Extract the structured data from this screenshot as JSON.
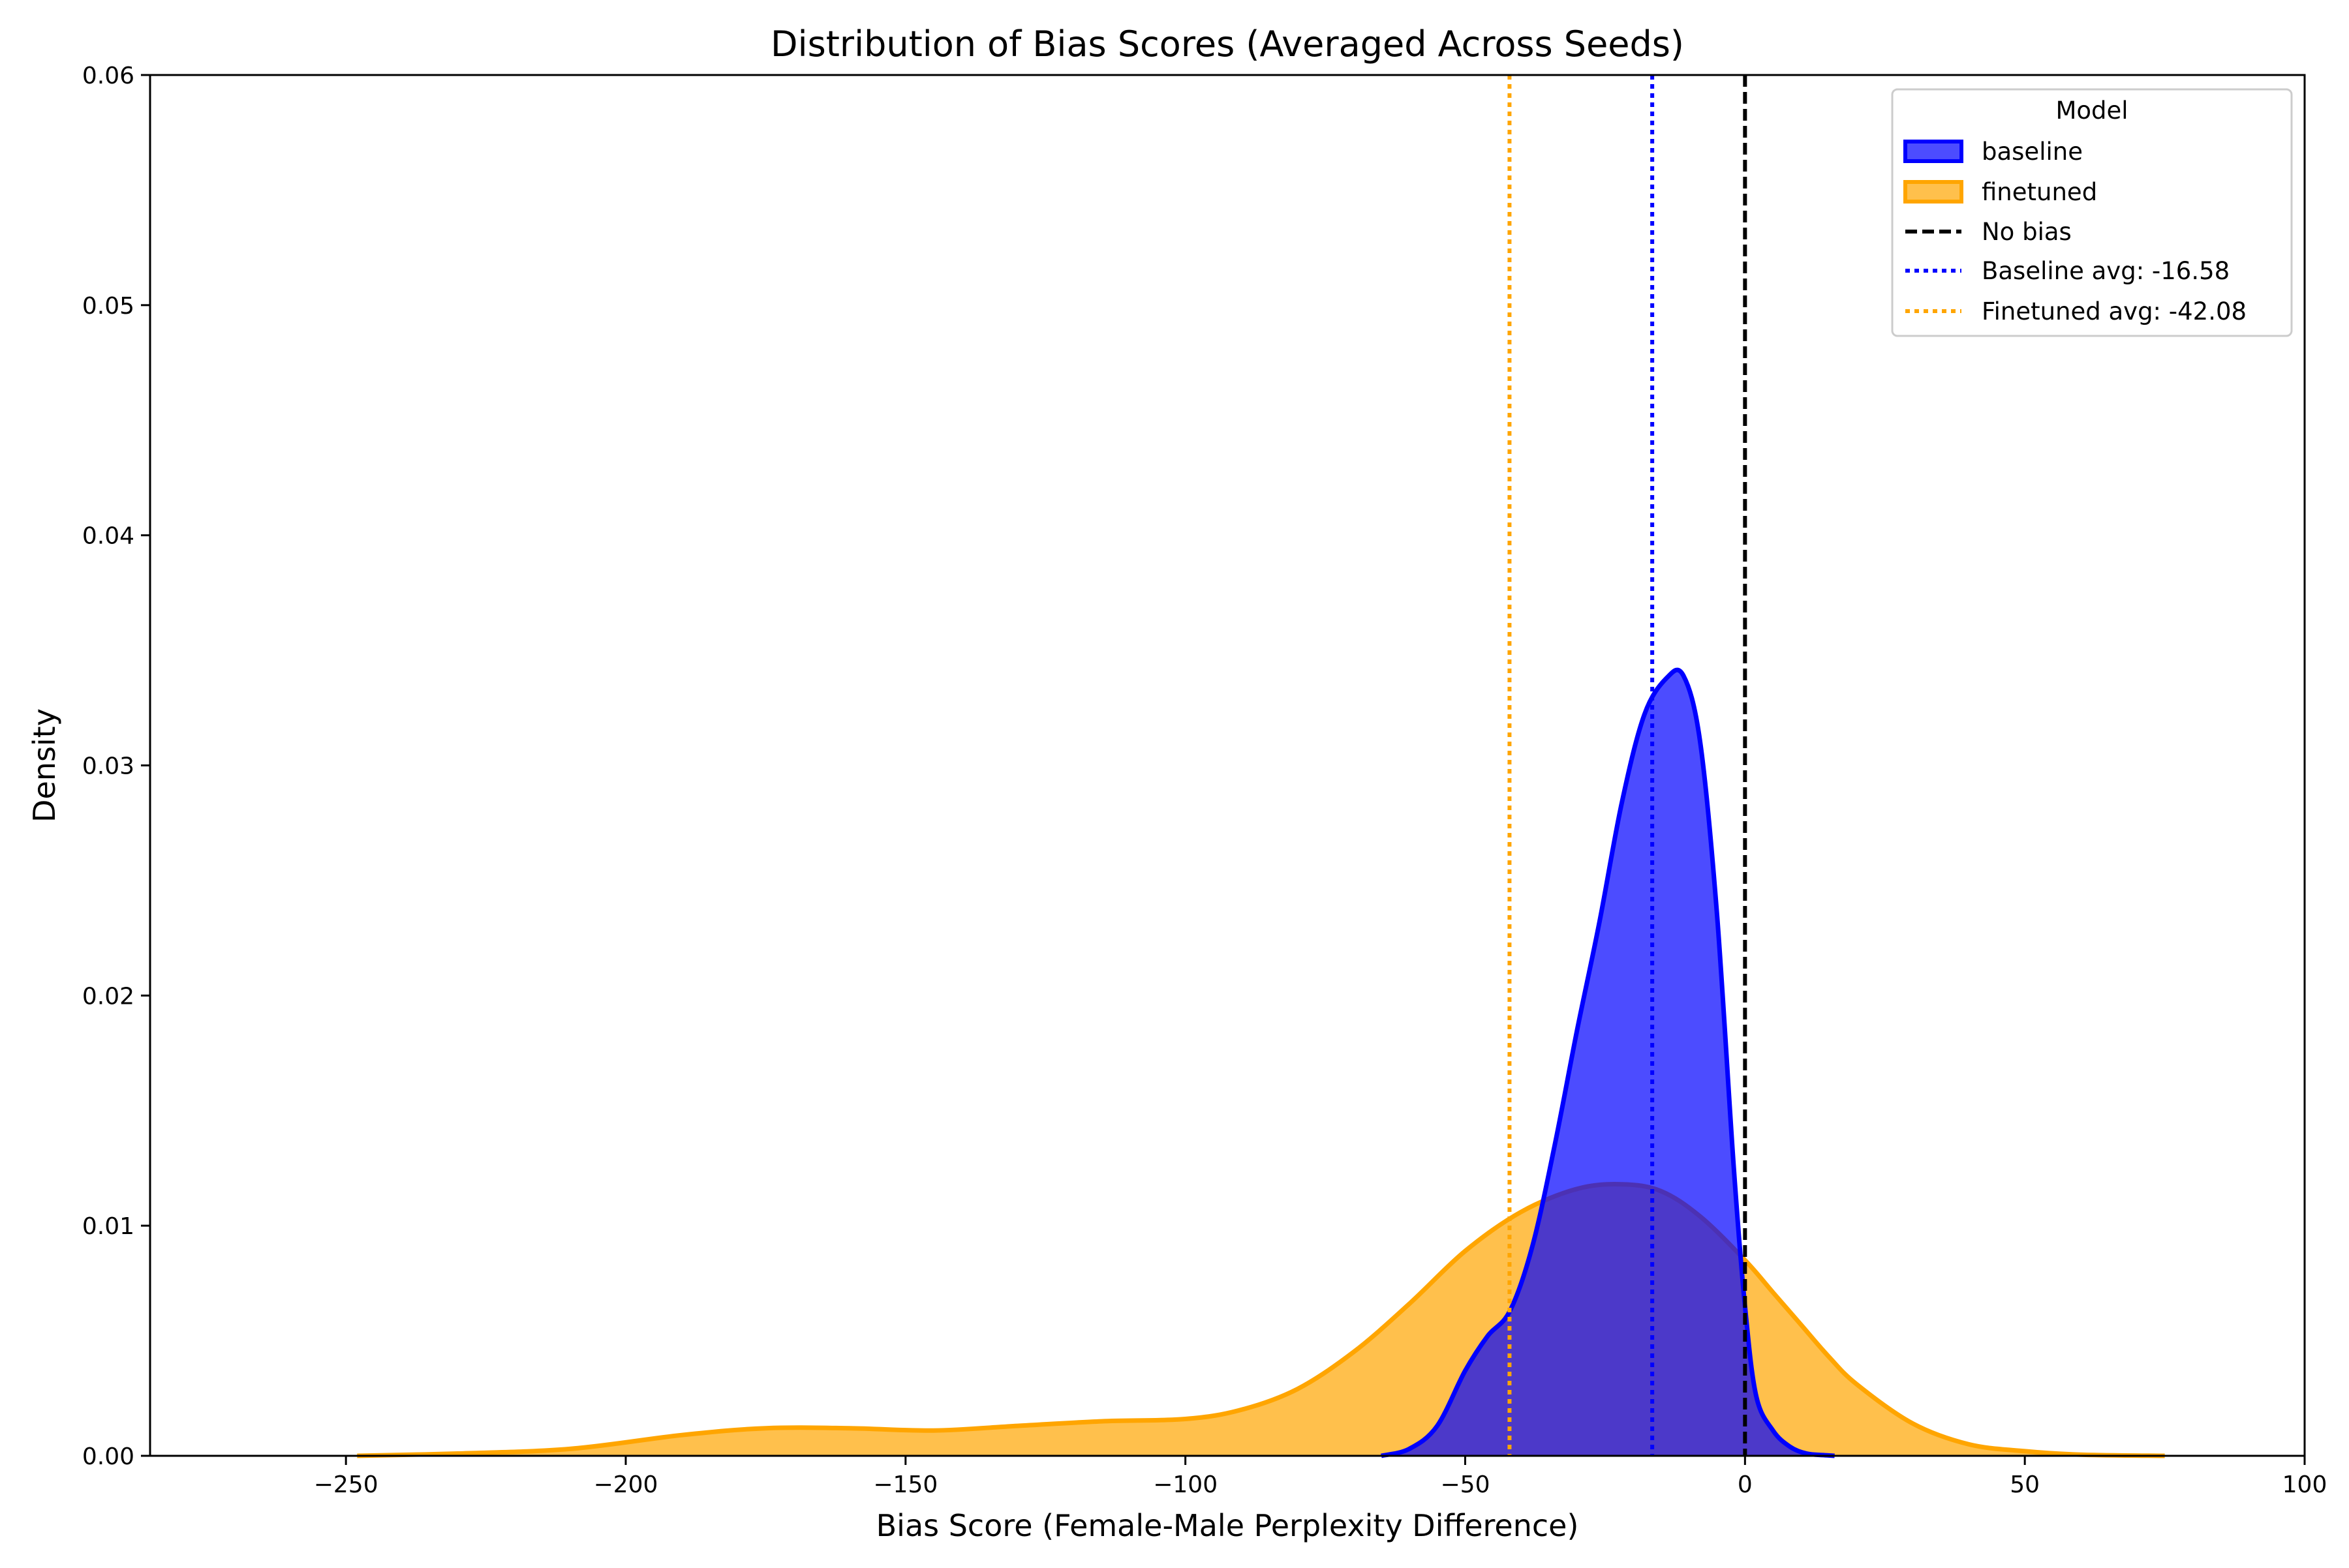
{
  "chart_data": {
    "type": "area",
    "title": "Distribution of Bias Scores (Averaged Across Seeds)",
    "xlabel": "Bias Score (Female-Male Perplexity Difference)",
    "ylabel": "Density",
    "xlim": [
      -285,
      100
    ],
    "ylim": [
      0,
      0.06
    ],
    "x_ticks": [
      -250,
      -200,
      -150,
      -100,
      -50,
      0,
      50,
      100
    ],
    "x_tick_labels": [
      "−250",
      "−200",
      "−150",
      "−100",
      "−50",
      "0",
      "50",
      "100"
    ],
    "y_ticks": [
      0,
      0.01,
      0.02,
      0.03,
      0.04,
      0.05,
      0.06
    ],
    "y_tick_labels": [
      "0.00",
      "0.01",
      "0.02",
      "0.03",
      "0.04",
      "0.05",
      "0.06"
    ],
    "grid": false,
    "legend": {
      "title": "Model",
      "placement": "top-right"
    },
    "series": [
      {
        "name": "baseline",
        "color": "#0000ff",
        "fill_opacity": 0.7,
        "x": [
          -65,
          -60,
          -55,
          -50,
          -46,
          -42,
          -38,
          -34,
          -30,
          -26,
          -22,
          -18,
          -14,
          -11,
          -8,
          -5,
          -2,
          0,
          2,
          5,
          8,
          11,
          14,
          16
        ],
        "y": [
          0.0,
          0.0003,
          0.0013,
          0.0037,
          0.0052,
          0.0063,
          0.0091,
          0.0135,
          0.0185,
          0.0232,
          0.0284,
          0.0322,
          0.0338,
          0.0339,
          0.031,
          0.0235,
          0.0125,
          0.0065,
          0.0026,
          0.0011,
          0.0004,
          0.0001,
          3e-05,
          0.0
        ]
      },
      {
        "name": "finetuned",
        "color": "#ffa500",
        "fill_opacity": 0.7,
        "x": [
          -248,
          -230,
          -210,
          -190,
          -175,
          -160,
          -145,
          -130,
          -115,
          -100,
          -90,
          -80,
          -70,
          -60,
          -50,
          -40,
          -30,
          -22,
          -15,
          -8,
          0,
          5,
          10,
          15,
          20,
          30,
          40,
          50,
          60,
          75
        ],
        "y": [
          0.0,
          0.0001,
          0.0003,
          0.0009,
          0.0012,
          0.0012,
          0.0011,
          0.0013,
          0.0015,
          0.0016,
          0.002,
          0.0029,
          0.0045,
          0.0066,
          0.0089,
          0.0106,
          0.0116,
          0.0118,
          0.0115,
          0.0104,
          0.0085,
          0.0071,
          0.0057,
          0.0043,
          0.0031,
          0.0014,
          0.0005,
          0.0002,
          5e-05,
          0.0
        ]
      }
    ],
    "reference_lines": [
      {
        "label": "No bias",
        "x": 0,
        "color": "#000000",
        "style": "dashed"
      },
      {
        "label": "Baseline avg: -16.58",
        "x": -16.58,
        "color": "#0000ff",
        "style": "dotted"
      },
      {
        "label": "Finetuned avg: -42.08",
        "x": -42.08,
        "color": "#ffa500",
        "style": "dotted"
      }
    ]
  }
}
